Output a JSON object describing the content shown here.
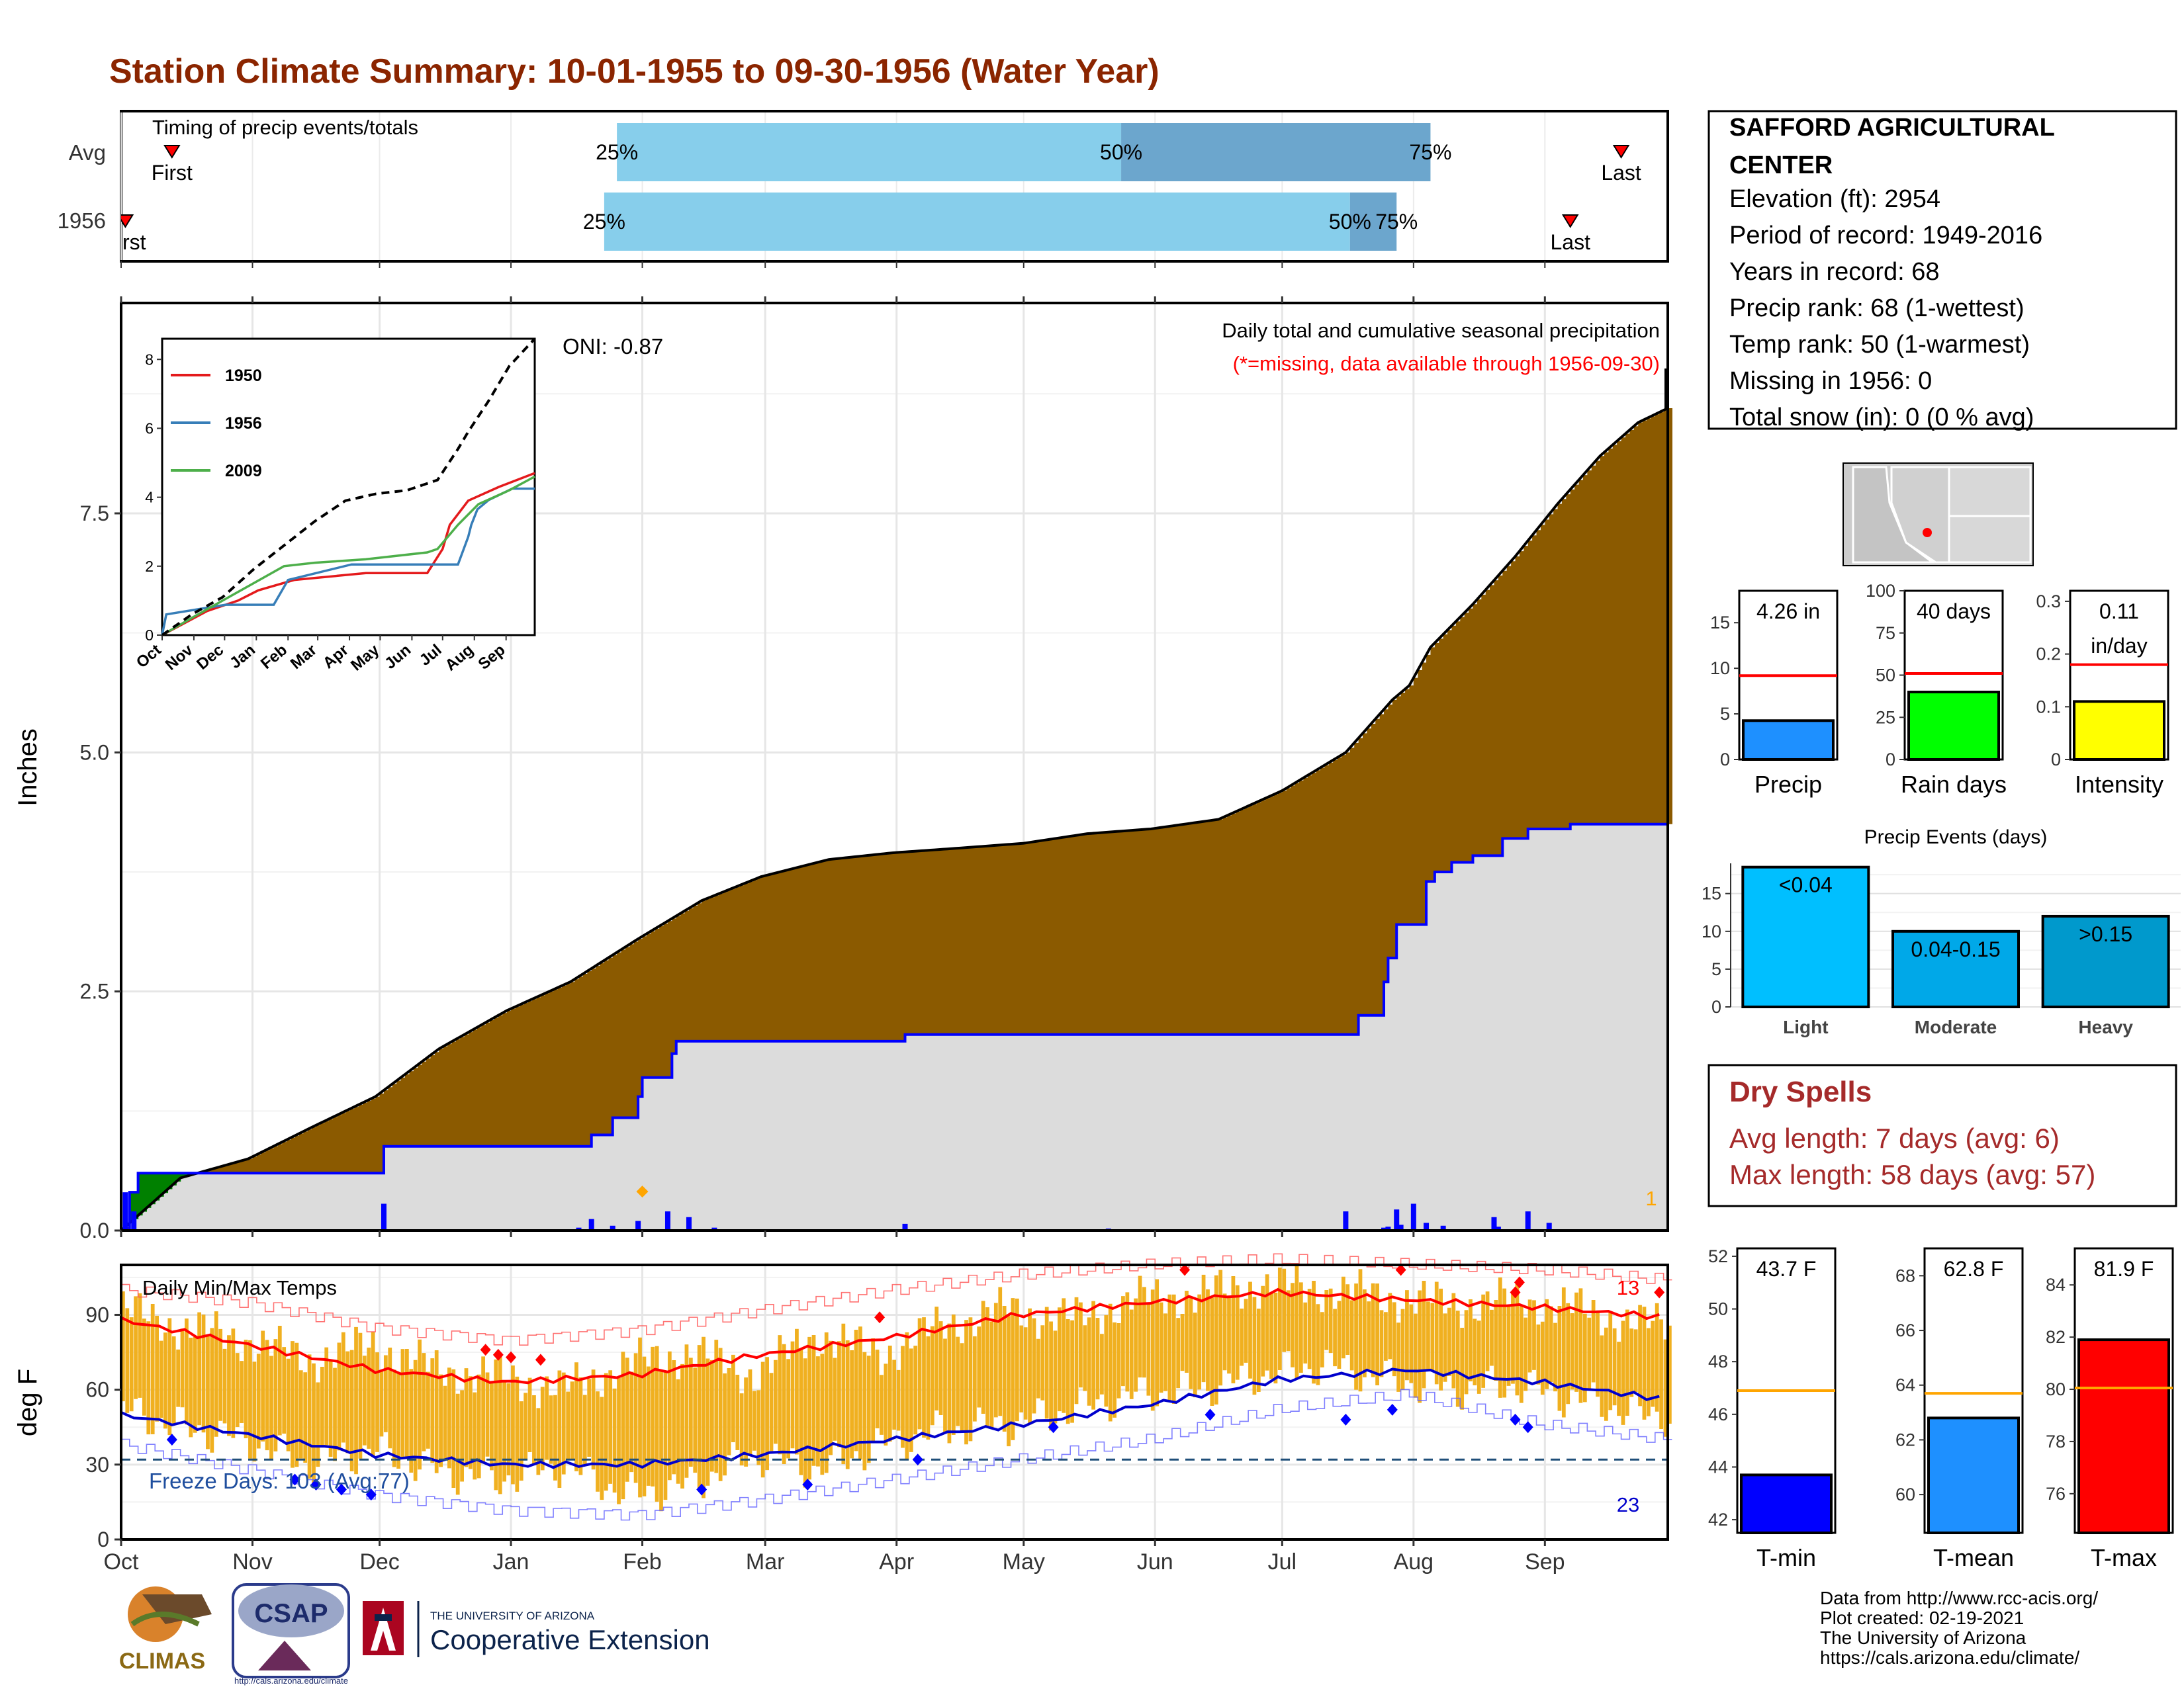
{
  "title": "Station Climate Summary: 10-01-1955 to 09-30-1956 (Water Year)",
  "timing": {
    "label": "Timing of precip events/totals",
    "rows": [
      {
        "name": "Avg",
        "first_label": "First",
        "last_label": "Last",
        "p25": "25%",
        "p50": "50%",
        "p75": "75%"
      },
      {
        "name": "1956",
        "first_label": "First",
        "last_label": "Last",
        "p25": "25%",
        "p50": "50%",
        "p75": "75%"
      }
    ]
  },
  "station": {
    "name": "SAFFORD AGRICULTURAL CENTER",
    "lines": [
      "Elevation (ft): 2954",
      "Period of record: 1949-2016",
      "Years in record: 68",
      "Precip rank: 68 (1-wettest)",
      "Temp rank: 50 (1-warmest)",
      "Missing in 1956: 0",
      "Total snow (in): 0 (0 % avg)"
    ]
  },
  "main_chart": {
    "title": "Daily total and cumulative seasonal precipitation",
    "subtitle": "(*=missing, data available through 1956-09-30)",
    "oni": "ONI: -0.87",
    "ylabel": "Inches",
    "corner_count": "1"
  },
  "months": [
    "Oct",
    "Nov",
    "Dec",
    "Jan",
    "Feb",
    "Mar",
    "Apr",
    "May",
    "Jun",
    "Jul",
    "Aug",
    "Sep"
  ],
  "inset_months": [
    "Oct",
    "Nov",
    "Dec",
    "Jan",
    "Feb",
    "Mar",
    "Apr",
    "May",
    "Jun",
    "Jul",
    "Aug",
    "Sep"
  ],
  "temp_chart": {
    "title": "Daily Min/Max Temps",
    "ylabel": "deg F",
    "freeze_label": "Freeze Days: 103 (Avg:77)",
    "hot_count": "13",
    "cold_count": "23"
  },
  "dry_spells": {
    "title": "Dry Spells",
    "avg": "Avg length: 7 days (avg: 6)",
    "max": "Max length: 58 days (avg: 57)"
  },
  "events_title": "Precip Events (days)",
  "footer": {
    "lines": [
      "Data from http://www.rcc-acis.org/",
      "Plot created: 02-19-2021",
      "The University of Arizona",
      "https://cals.arizona.edu/climate/"
    ],
    "logo_climas": "CLIMAS",
    "logo_csap": "CSAP",
    "logo_csap_url": "http://cals.arizona.edu/climate",
    "ua_small": "THE UNIVERSITY OF ARIZONA",
    "ua_big": "Cooperative Extension"
  },
  "colors": {
    "title": "#8b2500",
    "cum_avg_fill": "#8b5a00",
    "cum_year_fill": "#dcdcdc",
    "cum_line": "#0000ff",
    "wet_fill": "#008000",
    "temp_bar": "#f0b020",
    "tmax_avg": "#ff0000",
    "tmin_avg": "#0000cc",
    "dry_spell": "#a52a2a"
  },
  "chart_data": [
    {
      "type": "bar",
      "name": "timing",
      "note_units": "day of water year (1 = Oct 1)",
      "rows": [
        {
          "label": "Avg",
          "first": 13,
          "p25": 118,
          "p50": 237,
          "p75": 310,
          "last": 355
        },
        {
          "label": "1956",
          "first": 2,
          "p25": 115,
          "p50": 291,
          "p75": 302,
          "last": 343
        }
      ]
    },
    {
      "type": "area",
      "name": "cumulative_precip",
      "ylim": [
        0,
        9.7
      ],
      "yticks": [
        0.0,
        2.5,
        5.0,
        7.5
      ],
      "ytick_labels": [
        "0.0",
        "2.5",
        "5.0",
        "7.5"
      ],
      "xlim_days": [
        1,
        366
      ],
      "avg_cumulative": {
        "day": [
          1,
          15,
          31,
          46,
          61,
          76,
          92,
          107,
          123,
          138,
          152,
          168,
          183,
          199,
          214,
          229,
          244,
          260,
          275,
          290,
          301,
          305,
          310,
          320,
          330,
          340,
          350,
          359,
          366
        ],
        "in": [
          0.0,
          0.55,
          0.75,
          1.08,
          1.4,
          1.9,
          2.3,
          2.6,
          3.05,
          3.45,
          3.7,
          3.88,
          3.95,
          4.0,
          4.05,
          4.15,
          4.2,
          4.3,
          4.6,
          5.0,
          5.55,
          5.7,
          6.1,
          6.55,
          7.05,
          7.6,
          8.1,
          8.45,
          8.6
        ]
      },
      "year_cumulative": {
        "day": [
          1,
          3,
          5,
          40,
          63,
          110,
          112,
          117,
          123,
          124,
          131,
          132,
          185,
          186,
          290,
          293,
          299,
          300,
          302,
          309,
          311,
          315,
          320,
          327,
          333,
          343,
          366
        ],
        "in": [
          0.0,
          0.4,
          0.6,
          0.6,
          0.88,
          0.88,
          1.0,
          1.18,
          1.4,
          1.6,
          1.85,
          1.98,
          1.98,
          2.05,
          2.05,
          2.25,
          2.6,
          2.85,
          3.2,
          3.65,
          3.75,
          3.85,
          3.92,
          4.1,
          4.2,
          4.25,
          4.25
        ]
      },
      "daily_precip": {
        "day": [
          2,
          4,
          63,
          109,
          112,
          117,
          123,
          130,
          135,
          141,
          186,
          234,
          290,
          299,
          300,
          302,
          303,
          306,
          309,
          313,
          325,
          326,
          333,
          338
        ],
        "in": [
          0.4,
          0.2,
          0.28,
          0.03,
          0.12,
          0.05,
          0.1,
          0.2,
          0.14,
          0.03,
          0.07,
          0.02,
          0.2,
          0.03,
          0.04,
          0.22,
          0.06,
          0.28,
          0.08,
          0.05,
          0.14,
          0.04,
          0.2,
          0.08
        ]
      }
    },
    {
      "type": "line",
      "name": "inset_cumulative_analogs",
      "ylim": [
        0,
        8.6
      ],
      "yticks": [
        0,
        2,
        4,
        6,
        8
      ],
      "series": [
        {
          "name": "1950",
          "color": "#e41a1c",
          "day": [
            1,
            45,
            75,
            95,
            130,
            200,
            260,
            275,
            282,
            300,
            330,
            365
          ],
          "in": [
            0.0,
            0.7,
            1.0,
            1.3,
            1.6,
            1.8,
            1.8,
            2.5,
            3.2,
            3.9,
            4.3,
            4.7
          ]
        },
        {
          "name": "1956",
          "color": "#377eb8",
          "day": [
            1,
            5,
            63,
            110,
            124,
            186,
            290,
            300,
            303,
            309,
            320,
            343,
            365
          ],
          "in": [
            0.0,
            0.6,
            0.88,
            0.88,
            1.6,
            2.05,
            2.05,
            2.85,
            3.2,
            3.65,
            3.92,
            4.25,
            4.25
          ]
        },
        {
          "name": "2009",
          "color": "#4daf4a",
          "day": [
            1,
            30,
            60,
            90,
            120,
            150,
            200,
            260,
            270,
            290,
            310,
            340,
            365
          ],
          "in": [
            0.0,
            0.5,
            1.0,
            1.5,
            2.0,
            2.1,
            2.2,
            2.4,
            2.5,
            3.2,
            3.8,
            4.2,
            4.6
          ]
        },
        {
          "name": "avg",
          "color": "#000000",
          "dash": true,
          "day": [
            1,
            30,
            60,
            90,
            120,
            150,
            180,
            210,
            240,
            270,
            290,
            300,
            320,
            340,
            365
          ],
          "in": [
            0.0,
            0.6,
            1.1,
            1.9,
            2.6,
            3.3,
            3.9,
            4.1,
            4.2,
            4.5,
            5.4,
            5.9,
            6.8,
            7.8,
            8.6
          ]
        }
      ]
    },
    {
      "type": "area",
      "name": "daily_temperatures",
      "ylim": [
        0,
        110
      ],
      "yticks": [
        0,
        30,
        60,
        90
      ],
      "tmax_avg": {
        "day": [
          1,
          31,
          61,
          92,
          123,
          152,
          183,
          213,
          244,
          274,
          305,
          336,
          366
        ],
        "F": [
          88,
          78,
          68,
          63,
          66,
          74,
          81,
          90,
          95,
          99,
          96,
          93,
          89
        ]
      },
      "tmin_avg": {
        "day": [
          1,
          31,
          61,
          92,
          123,
          152,
          183,
          213,
          244,
          274,
          305,
          336,
          366
        ],
        "F": [
          50,
          42,
          34,
          30,
          30,
          34,
          40,
          46,
          54,
          64,
          68,
          63,
          56
        ]
      },
      "record_high": {
        "day": [
          1,
          31,
          61,
          92,
          123,
          152,
          183,
          213,
          244,
          274,
          305,
          336,
          366
        ],
        "F": [
          100,
          95,
          85,
          80,
          84,
          92,
          100,
          106,
          110,
          112,
          110,
          108,
          104
        ]
      },
      "record_low": {
        "day": [
          1,
          31,
          61,
          92,
          123,
          152,
          183,
          213,
          244,
          274,
          305,
          336,
          366
        ],
        "F": [
          38,
          28,
          18,
          12,
          10,
          16,
          24,
          32,
          40,
          52,
          58,
          46,
          40
        ]
      },
      "tmax_obs": {
        "day": [
          1,
          15,
          30,
          45,
          60,
          75,
          90,
          105,
          120,
          135,
          150,
          165,
          180,
          195,
          210,
          225,
          240,
          255,
          270,
          285,
          300,
          315,
          330,
          345,
          360
        ],
        "F": [
          92,
          85,
          80,
          72,
          78,
          68,
          65,
          60,
          70,
          75,
          66,
          82,
          74,
          86,
          92,
          88,
          96,
          98,
          102,
          100,
          97,
          94,
          96,
          92,
          86
        ]
      },
      "tmin_obs": {
        "day": [
          1,
          15,
          30,
          45,
          60,
          75,
          90,
          105,
          120,
          135,
          150,
          165,
          180,
          195,
          210,
          225,
          240,
          255,
          270,
          285,
          300,
          315,
          330,
          345,
          360
        ],
        "F": [
          52,
          45,
          40,
          30,
          36,
          28,
          24,
          30,
          18,
          22,
          34,
          28,
          38,
          44,
          46,
          52,
          58,
          60,
          66,
          70,
          64,
          60,
          62,
          56,
          50
        ]
      },
      "freeze_line": 32,
      "freeze_days": 103,
      "freeze_days_avg": 77,
      "hot_days": 13,
      "cold_days": 23
    },
    {
      "type": "bar",
      "name": "summary_precip",
      "panels": [
        {
          "label": "Precip",
          "value": 4.26,
          "avg": 9.2,
          "ylim": [
            0,
            18.5
          ],
          "yticks": [
            0,
            5,
            10,
            15
          ],
          "value_label": "4.26 in",
          "color": "#1e90ff"
        },
        {
          "label": "Rain days",
          "value": 40,
          "avg": 51,
          "ylim": [
            0,
            100
          ],
          "yticks": [
            0,
            25,
            50,
            75,
            100
          ],
          "value_label": "40 days",
          "color": "#00ff00"
        },
        {
          "label": "Intensity",
          "value": 0.11,
          "avg": 0.18,
          "ylim": [
            0,
            0.32
          ],
          "yticks": [
            0.0,
            0.1,
            0.2,
            0.3
          ],
          "value_label": "0.11 in/day",
          "color": "#ffff00"
        }
      ]
    },
    {
      "type": "bar",
      "name": "precip_events",
      "categories": [
        "Light",
        "Moderate",
        "Heavy"
      ],
      "bar_labels": [
        "<0.04",
        "0.04-0.15",
        ">0.15"
      ],
      "values": [
        18.5,
        10,
        12
      ],
      "ylim": [
        0,
        19
      ],
      "yticks": [
        0,
        5,
        10,
        15
      ],
      "colors": [
        "#00bfff",
        "#00a8e8",
        "#0099cc"
      ]
    },
    {
      "type": "bar",
      "name": "summary_temps",
      "panels": [
        {
          "label": "T-min",
          "value": 43.7,
          "avg": 46.9,
          "ylim": [
            41.5,
            52.3
          ],
          "yticks": [
            42,
            44,
            46,
            48,
            50,
            52
          ],
          "value_label": "43.7 F",
          "color": "#0000ff"
        },
        {
          "label": "T-mean",
          "value": 62.8,
          "avg": 63.7,
          "ylim": [
            58.6,
            69.0
          ],
          "yticks": [
            60,
            62,
            64,
            66,
            68
          ],
          "value_label": "62.8 F",
          "color": "#1e90ff"
        },
        {
          "label": "T-max",
          "value": 81.9,
          "avg": 80.05,
          "ylim": [
            74.5,
            85.4
          ],
          "yticks": [
            76,
            78,
            80,
            82,
            84
          ],
          "value_label": "81.9 F",
          "color": "#ff0000"
        }
      ]
    }
  ]
}
